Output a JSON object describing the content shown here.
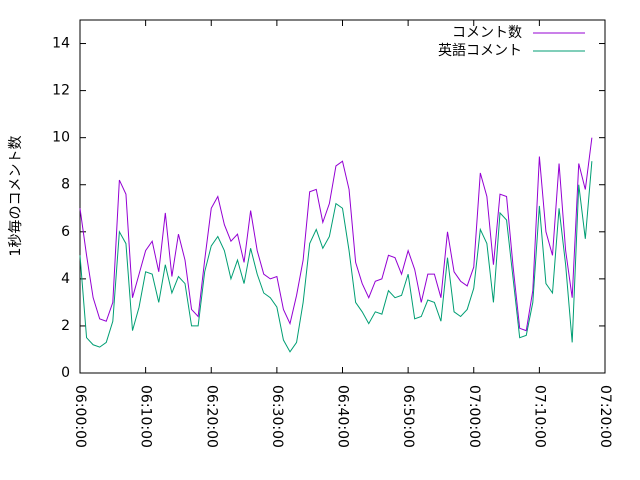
{
  "chart_data": {
    "type": "line",
    "ylabel": "1秒毎のコメント数",
    "x": [
      "06:00:00",
      "06:01:00",
      "06:02:00",
      "06:03:00",
      "06:04:00",
      "06:05:00",
      "06:06:00",
      "06:07:00",
      "06:08:00",
      "06:09:00",
      "06:10:00",
      "06:11:00",
      "06:12:00",
      "06:13:00",
      "06:14:00",
      "06:15:00",
      "06:16:00",
      "06:17:00",
      "06:18:00",
      "06:19:00",
      "06:20:00",
      "06:21:00",
      "06:22:00",
      "06:23:00",
      "06:24:00",
      "06:25:00",
      "06:26:00",
      "06:27:00",
      "06:28:00",
      "06:29:00",
      "06:30:00",
      "06:31:00",
      "06:32:00",
      "06:33:00",
      "06:34:00",
      "06:35:00",
      "06:36:00",
      "06:37:00",
      "06:38:00",
      "06:39:00",
      "06:40:00",
      "06:41:00",
      "06:42:00",
      "06:43:00",
      "06:44:00",
      "06:45:00",
      "06:46:00",
      "06:47:00",
      "06:48:00",
      "06:49:00",
      "06:50:00",
      "06:51:00",
      "06:52:00",
      "06:53:00",
      "06:54:00",
      "06:55:00",
      "06:56:00",
      "06:57:00",
      "06:58:00",
      "06:59:00",
      "07:00:00",
      "07:01:00",
      "07:02:00",
      "07:03:00",
      "07:04:00",
      "07:05:00",
      "07:06:00",
      "07:07:00",
      "07:08:00",
      "07:09:00",
      "07:10:00",
      "07:11:00",
      "07:12:00",
      "07:13:00",
      "07:14:00",
      "07:15:00",
      "07:16:00",
      "07:17:00",
      "07:18:00"
    ],
    "series": [
      {
        "name": "コメント数",
        "color": "#9400d3",
        "values": [
          7.0,
          5.0,
          3.2,
          2.3,
          2.2,
          3.0,
          8.2,
          7.6,
          3.2,
          4.2,
          5.2,
          5.6,
          4.3,
          6.8,
          4.1,
          5.9,
          4.8,
          2.7,
          2.4,
          4.8,
          7.0,
          7.5,
          6.3,
          5.6,
          5.9,
          4.7,
          6.9,
          5.2,
          4.2,
          4.0,
          4.1,
          2.7,
          2.1,
          3.3,
          4.8,
          7.7,
          7.8,
          6.4,
          7.2,
          8.8,
          9.0,
          7.8,
          4.7,
          3.8,
          3.2,
          3.9,
          4.0,
          5.0,
          4.9,
          4.2,
          5.2,
          4.4,
          3.0,
          4.2,
          4.2,
          3.2,
          6.0,
          4.3,
          3.9,
          3.7,
          4.5,
          8.5,
          7.5,
          4.6,
          7.6,
          7.5,
          4.5,
          1.9,
          1.8,
          3.5,
          9.2,
          6.0,
          5.0,
          8.9,
          5.2,
          3.2,
          8.9,
          7.8,
          10.0
        ]
      },
      {
        "name": "英語コメント",
        "color": "#009e73",
        "values": [
          5.0,
          1.5,
          1.2,
          1.1,
          1.3,
          2.2,
          6.0,
          5.5,
          1.8,
          2.8,
          4.3,
          4.2,
          3.0,
          4.6,
          3.4,
          4.1,
          3.8,
          2.0,
          2.0,
          4.3,
          5.4,
          5.8,
          5.2,
          4.0,
          4.8,
          3.8,
          5.3,
          4.2,
          3.4,
          3.2,
          2.8,
          1.4,
          0.9,
          1.3,
          3.0,
          5.5,
          6.1,
          5.3,
          5.8,
          7.2,
          7.0,
          5.2,
          3.0,
          2.6,
          2.1,
          2.6,
          2.5,
          3.5,
          3.2,
          3.3,
          4.2,
          2.3,
          2.4,
          3.1,
          3.0,
          2.2,
          4.9,
          2.6,
          2.4,
          2.7,
          3.6,
          6.1,
          5.5,
          3.0,
          6.8,
          6.5,
          4.0,
          1.5,
          1.6,
          3.0,
          7.1,
          3.8,
          3.4,
          7.0,
          4.6,
          1.3,
          8.0,
          5.7,
          9.0
        ]
      }
    ],
    "xlim": [
      "06:00:00",
      "07:20:00"
    ],
    "xticks": [
      "06:00:00",
      "06:10:00",
      "06:20:00",
      "06:30:00",
      "06:40:00",
      "06:50:00",
      "07:00:00",
      "07:10:00",
      "07:20:00"
    ],
    "ylim": [
      0,
      15
    ],
    "yticks": [
      0,
      2,
      4,
      6,
      8,
      10,
      12,
      14
    ],
    "legend": "top-right"
  }
}
